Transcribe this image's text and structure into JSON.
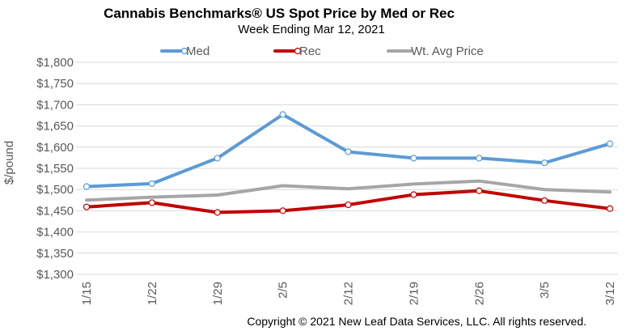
{
  "chart_data": {
    "type": "line",
    "title": "Cannabis Benchmarks® US Spot Price by Med or Rec",
    "subtitle": "Week Ending Mar 12, 2021",
    "ylabel": "$/pound",
    "xlabel": "",
    "ylim": [
      1300,
      1800
    ],
    "ytick_values": [
      1300,
      1350,
      1400,
      1450,
      1500,
      1550,
      1600,
      1650,
      1700,
      1750,
      1800
    ],
    "ytick_labels": [
      "$1,300",
      "$1,350",
      "$1,400",
      "$1,450",
      "$1,500",
      "$1,550",
      "$1,600",
      "$1,650",
      "$1,700",
      "$1,750",
      "$1,800"
    ],
    "categories": [
      "1/15",
      "1/22",
      "1/29",
      "2/5",
      "2/12",
      "2/19",
      "2/26",
      "3/5",
      "3/12"
    ],
    "legend_position": "top",
    "grid": "horizontal",
    "series": [
      {
        "name": "Med",
        "color": "#5b9bd5",
        "markers": true,
        "values": [
          1507,
          1514,
          1574,
          1677,
          1589,
          1574,
          1574,
          1563,
          1608
        ]
      },
      {
        "name": "Rec",
        "color": "#c00000",
        "markers": true,
        "values": [
          1459,
          1469,
          1446,
          1450,
          1464,
          1488,
          1497,
          1474,
          1455
        ]
      },
      {
        "name": "Wt. Avg Price",
        "color": "#a6a6a6",
        "markers": false,
        "values": [
          1475,
          1482,
          1487,
          1509,
          1502,
          1513,
          1520,
          1500,
          1494
        ]
      }
    ]
  },
  "footer": {
    "copyright": "Copyright © 2021 New Leaf Data Services, LLC. All rights reserved."
  }
}
